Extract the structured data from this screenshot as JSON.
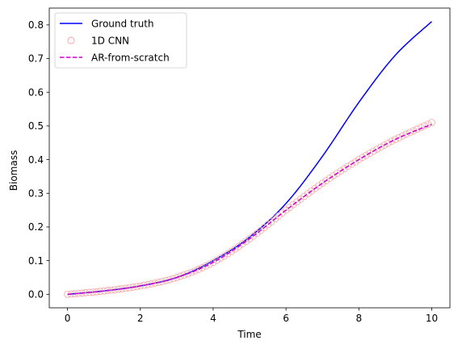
{
  "chart_data": {
    "type": "line",
    "xlabel": "Time",
    "ylabel": "Biomass",
    "xlim": [
      -0.5,
      10.5
    ],
    "ylim": [
      -0.04,
      0.85
    ],
    "xticks": [
      0,
      2,
      4,
      6,
      8,
      10
    ],
    "xtick_labels": [
      "0",
      "2",
      "4",
      "6",
      "8",
      "10"
    ],
    "yticks": [
      0.0,
      0.1,
      0.2,
      0.3,
      0.4,
      0.5,
      0.6,
      0.7,
      0.8
    ],
    "ytick_labels": [
      "0.0",
      "0.1",
      "0.2",
      "0.3",
      "0.4",
      "0.5",
      "0.6",
      "0.7",
      "0.8"
    ],
    "grid": false,
    "legend_position": "top-left",
    "legend": [
      "Ground truth",
      "1D CNN",
      "AR-from-scratch"
    ],
    "series": [
      {
        "name": "Ground truth",
        "style": "solid-line",
        "color": "#0000ff",
        "x": [
          0,
          1,
          2,
          3,
          4,
          5,
          6,
          7,
          8,
          9,
          10
        ],
        "y": [
          0.0,
          0.01,
          0.025,
          0.05,
          0.1,
          0.17,
          0.27,
          0.41,
          0.57,
          0.71,
          0.81
        ]
      },
      {
        "name": "1D CNN",
        "style": "hollow-circles",
        "color": "#f4a3a3",
        "x": [
          0,
          1,
          2,
          3,
          4,
          5,
          6,
          7,
          8,
          9,
          10
        ],
        "y": [
          0.0,
          0.01,
          0.025,
          0.05,
          0.095,
          0.165,
          0.25,
          0.33,
          0.4,
          0.46,
          0.51
        ]
      },
      {
        "name": "AR-from-scratch",
        "style": "dashed-line",
        "color": "#cc00cc",
        "x": [
          0,
          1,
          2,
          3,
          4,
          5,
          6,
          7,
          8,
          9,
          10
        ],
        "y": [
          0.0,
          0.01,
          0.025,
          0.05,
          0.095,
          0.165,
          0.25,
          0.33,
          0.4,
          0.46,
          0.505
        ]
      }
    ]
  }
}
